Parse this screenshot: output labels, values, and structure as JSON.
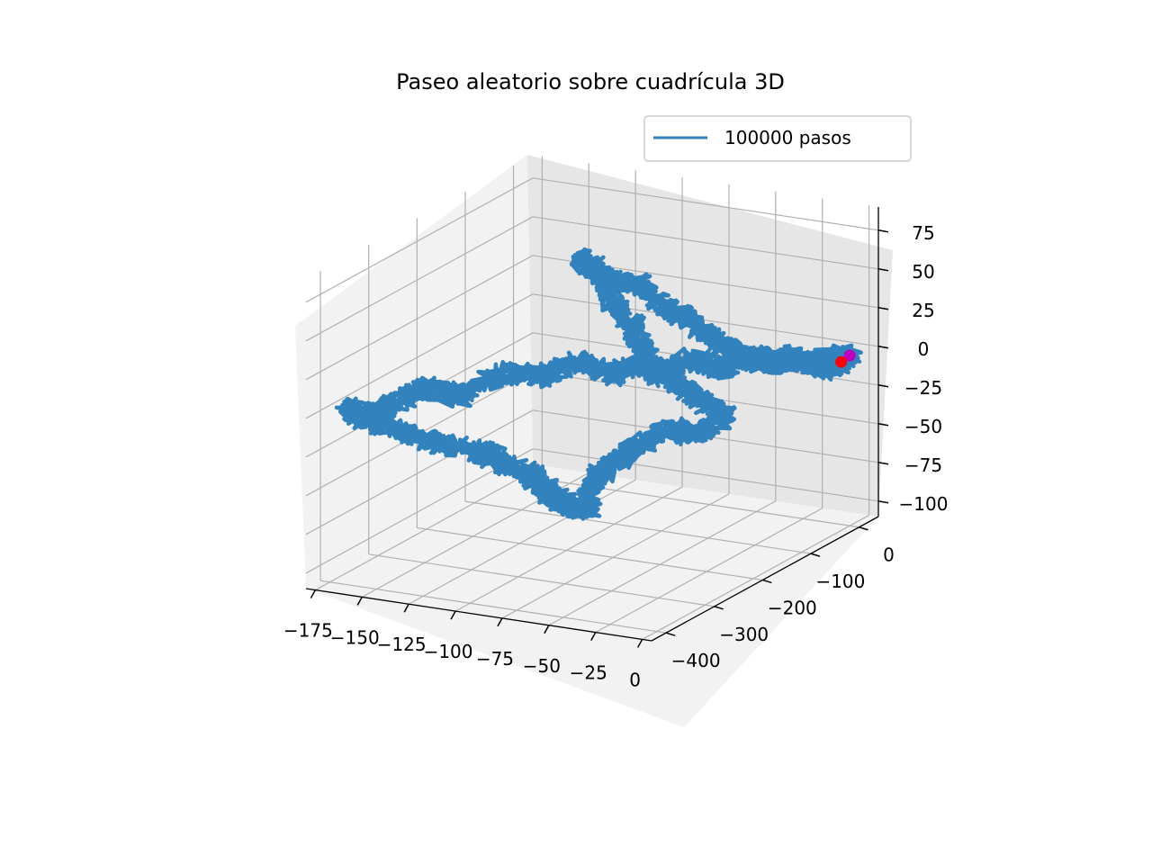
{
  "chart_data": {
    "type": "line",
    "projection": "3d",
    "title": "Paseo aleatorio sobre cuadrícula 3D",
    "xlabel": "",
    "ylabel": "",
    "zlabel": "",
    "xlim": [
      -180,
      5
    ],
    "ylim": [
      -430,
      40
    ],
    "zlim": [
      -110,
      90
    ],
    "x_ticks": [
      -175,
      -150,
      -125,
      -100,
      -75,
      -50,
      -25,
      0
    ],
    "x_tick_labels": [
      "−175",
      "−150",
      "−125",
      "−100",
      "−75",
      "−50",
      "−25",
      "0"
    ],
    "y_ticks": [
      0,
      -100,
      -200,
      -300,
      -400
    ],
    "y_tick_labels": [
      "0",
      "−100",
      "−200",
      "−300",
      "−400"
    ],
    "z_ticks": [
      75,
      50,
      25,
      0,
      -25,
      -50,
      -75,
      -100
    ],
    "z_tick_labels": [
      "75",
      "50",
      "25",
      "0",
      "−25",
      "−50",
      "−75",
      "−100"
    ],
    "grid": true,
    "legend_position": "upper right",
    "series": [
      {
        "name": "100000 pasos",
        "color": "#3182bd",
        "path": [
          [
            0,
            0,
            0
          ],
          [
            -5,
            -18,
            2
          ],
          [
            -10,
            -35,
            -3
          ],
          [
            -18,
            -50,
            5
          ],
          [
            -25,
            -70,
            2
          ],
          [
            -30,
            -95,
            10
          ],
          [
            -38,
            -120,
            5
          ],
          [
            -45,
            -150,
            15
          ],
          [
            -55,
            -175,
            10
          ],
          [
            -60,
            -200,
            20
          ],
          [
            -70,
            -220,
            12
          ],
          [
            -80,
            -250,
            25
          ],
          [
            -95,
            -270,
            15
          ],
          [
            -110,
            -300,
            20
          ],
          [
            -125,
            -320,
            5
          ],
          [
            -140,
            -340,
            12
          ],
          [
            -155,
            -350,
            0
          ],
          [
            -168,
            -358,
            -10
          ],
          [
            -175,
            -360,
            -5
          ],
          [
            -160,
            -345,
            -15
          ],
          [
            -140,
            -330,
            -25
          ],
          [
            -120,
            -310,
            -30
          ],
          [
            -110,
            -290,
            -40
          ],
          [
            -100,
            -270,
            -50
          ],
          [
            -95,
            -260,
            -60
          ],
          [
            -88,
            -250,
            -70
          ],
          [
            -80,
            -240,
            -75
          ],
          [
            -75,
            -245,
            -55
          ],
          [
            -70,
            -230,
            -45
          ],
          [
            -60,
            -210,
            -35
          ],
          [
            -50,
            -190,
            -25
          ],
          [
            -40,
            -160,
            -30
          ],
          [
            -30,
            -140,
            -20
          ],
          [
            -40,
            -180,
            0
          ],
          [
            -55,
            -200,
            15
          ],
          [
            -65,
            -190,
            35
          ],
          [
            -75,
            -200,
            55
          ],
          [
            -85,
            -190,
            70
          ],
          [
            -92,
            -200,
            80
          ],
          [
            -85,
            -180,
            65
          ],
          [
            -72,
            -160,
            60
          ],
          [
            -60,
            -150,
            45
          ],
          [
            -50,
            -140,
            40
          ],
          [
            -40,
            -130,
            25
          ],
          [
            -30,
            -110,
            15
          ],
          [
            -20,
            -85,
            8
          ],
          [
            -12,
            -60,
            4
          ],
          [
            -5,
            -40,
            0
          ],
          [
            -3,
            -25,
            -4
          ],
          [
            -1,
            -14,
            -2
          ]
        ],
        "start": [
          0,
          0,
          0
        ],
        "start_color": "#bf00bf",
        "end": [
          -1,
          -14,
          -2
        ],
        "end_color": "#ff0000"
      }
    ]
  }
}
